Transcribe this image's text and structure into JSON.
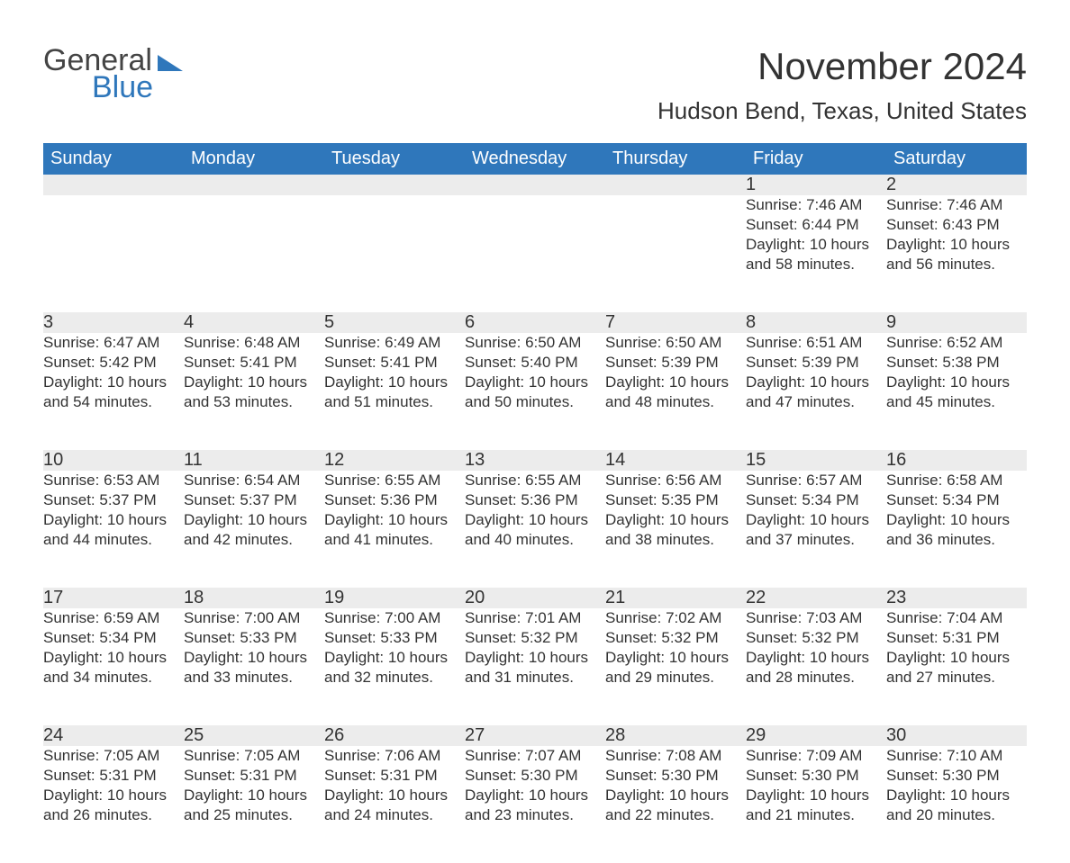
{
  "brand": {
    "part1": "General",
    "part2": "Blue"
  },
  "title": "November 2024",
  "location": "Hudson Bend, Texas, United States",
  "colors": {
    "header_bg": "#2f77bb",
    "header_text": "#ffffff",
    "daynum_bg": "#ececec",
    "daynum_border": "#2f77bb",
    "body_text": "#333333",
    "background": "#ffffff"
  },
  "weekdays": [
    "Sunday",
    "Monday",
    "Tuesday",
    "Wednesday",
    "Thursday",
    "Friday",
    "Saturday"
  ],
  "weeks": [
    [
      null,
      null,
      null,
      null,
      null,
      {
        "n": "1",
        "sunrise": "7:46 AM",
        "sunset": "6:44 PM",
        "daylight": "10 hours and 58 minutes."
      },
      {
        "n": "2",
        "sunrise": "7:46 AM",
        "sunset": "6:43 PM",
        "daylight": "10 hours and 56 minutes."
      }
    ],
    [
      {
        "n": "3",
        "sunrise": "6:47 AM",
        "sunset": "5:42 PM",
        "daylight": "10 hours and 54 minutes."
      },
      {
        "n": "4",
        "sunrise": "6:48 AM",
        "sunset": "5:41 PM",
        "daylight": "10 hours and 53 minutes."
      },
      {
        "n": "5",
        "sunrise": "6:49 AM",
        "sunset": "5:41 PM",
        "daylight": "10 hours and 51 minutes."
      },
      {
        "n": "6",
        "sunrise": "6:50 AM",
        "sunset": "5:40 PM",
        "daylight": "10 hours and 50 minutes."
      },
      {
        "n": "7",
        "sunrise": "6:50 AM",
        "sunset": "5:39 PM",
        "daylight": "10 hours and 48 minutes."
      },
      {
        "n": "8",
        "sunrise": "6:51 AM",
        "sunset": "5:39 PM",
        "daylight": "10 hours and 47 minutes."
      },
      {
        "n": "9",
        "sunrise": "6:52 AM",
        "sunset": "5:38 PM",
        "daylight": "10 hours and 45 minutes."
      }
    ],
    [
      {
        "n": "10",
        "sunrise": "6:53 AM",
        "sunset": "5:37 PM",
        "daylight": "10 hours and 44 minutes."
      },
      {
        "n": "11",
        "sunrise": "6:54 AM",
        "sunset": "5:37 PM",
        "daylight": "10 hours and 42 minutes."
      },
      {
        "n": "12",
        "sunrise": "6:55 AM",
        "sunset": "5:36 PM",
        "daylight": "10 hours and 41 minutes."
      },
      {
        "n": "13",
        "sunrise": "6:55 AM",
        "sunset": "5:36 PM",
        "daylight": "10 hours and 40 minutes."
      },
      {
        "n": "14",
        "sunrise": "6:56 AM",
        "sunset": "5:35 PM",
        "daylight": "10 hours and 38 minutes."
      },
      {
        "n": "15",
        "sunrise": "6:57 AM",
        "sunset": "5:34 PM",
        "daylight": "10 hours and 37 minutes."
      },
      {
        "n": "16",
        "sunrise": "6:58 AM",
        "sunset": "5:34 PM",
        "daylight": "10 hours and 36 minutes."
      }
    ],
    [
      {
        "n": "17",
        "sunrise": "6:59 AM",
        "sunset": "5:34 PM",
        "daylight": "10 hours and 34 minutes."
      },
      {
        "n": "18",
        "sunrise": "7:00 AM",
        "sunset": "5:33 PM",
        "daylight": "10 hours and 33 minutes."
      },
      {
        "n": "19",
        "sunrise": "7:00 AM",
        "sunset": "5:33 PM",
        "daylight": "10 hours and 32 minutes."
      },
      {
        "n": "20",
        "sunrise": "7:01 AM",
        "sunset": "5:32 PM",
        "daylight": "10 hours and 31 minutes."
      },
      {
        "n": "21",
        "sunrise": "7:02 AM",
        "sunset": "5:32 PM",
        "daylight": "10 hours and 29 minutes."
      },
      {
        "n": "22",
        "sunrise": "7:03 AM",
        "sunset": "5:32 PM",
        "daylight": "10 hours and 28 minutes."
      },
      {
        "n": "23",
        "sunrise": "7:04 AM",
        "sunset": "5:31 PM",
        "daylight": "10 hours and 27 minutes."
      }
    ],
    [
      {
        "n": "24",
        "sunrise": "7:05 AM",
        "sunset": "5:31 PM",
        "daylight": "10 hours and 26 minutes."
      },
      {
        "n": "25",
        "sunrise": "7:05 AM",
        "sunset": "5:31 PM",
        "daylight": "10 hours and 25 minutes."
      },
      {
        "n": "26",
        "sunrise": "7:06 AM",
        "sunset": "5:31 PM",
        "daylight": "10 hours and 24 minutes."
      },
      {
        "n": "27",
        "sunrise": "7:07 AM",
        "sunset": "5:30 PM",
        "daylight": "10 hours and 23 minutes."
      },
      {
        "n": "28",
        "sunrise": "7:08 AM",
        "sunset": "5:30 PM",
        "daylight": "10 hours and 22 minutes."
      },
      {
        "n": "29",
        "sunrise": "7:09 AM",
        "sunset": "5:30 PM",
        "daylight": "10 hours and 21 minutes."
      },
      {
        "n": "30",
        "sunrise": "7:10 AM",
        "sunset": "5:30 PM",
        "daylight": "10 hours and 20 minutes."
      }
    ]
  ],
  "labels": {
    "sunrise": "Sunrise: ",
    "sunset": "Sunset: ",
    "daylight": "Daylight: "
  }
}
